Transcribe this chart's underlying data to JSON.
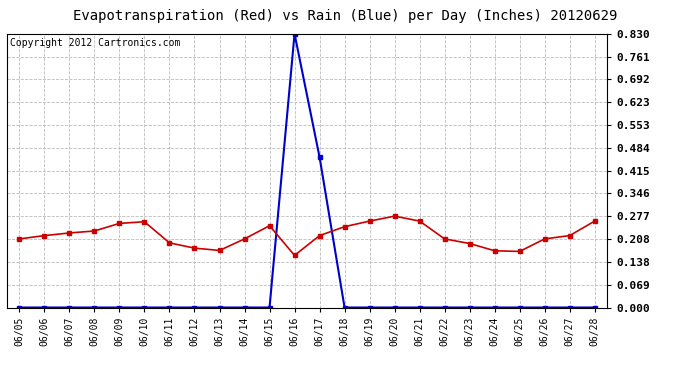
{
  "title": "Evapotranspiration (Red) vs Rain (Blue) per Day (Inches) 20120629",
  "copyright": "Copyright 2012 Cartronics.com",
  "x_labels": [
    "06/05",
    "06/06",
    "06/07",
    "06/08",
    "06/09",
    "06/10",
    "06/11",
    "06/12",
    "06/13",
    "06/14",
    "06/15",
    "06/16",
    "06/17",
    "06/18",
    "06/19",
    "06/20",
    "06/21",
    "06/22",
    "06/23",
    "06/24",
    "06/25",
    "06/26",
    "06/27",
    "06/28"
  ],
  "et_values": [
    0.208,
    0.218,
    0.226,
    0.232,
    0.255,
    0.26,
    0.196,
    0.18,
    0.173,
    0.208,
    0.248,
    0.158,
    0.218,
    0.245,
    0.262,
    0.277,
    0.262,
    0.208,
    0.194,
    0.172,
    0.17,
    0.208,
    0.218,
    0.262
  ],
  "rain_values": [
    0.0,
    0.0,
    0.0,
    0.0,
    0.0,
    0.0,
    0.0,
    0.0,
    0.0,
    0.0,
    0.0,
    0.83,
    0.456,
    0.0,
    0.0,
    0.0,
    0.0,
    0.0,
    0.0,
    0.0,
    0.0,
    0.0,
    0.0,
    0.0
  ],
  "et_color": "#cc0000",
  "rain_color": "#0000cc",
  "background_color": "#ffffff",
  "grid_color": "#bbbbbb",
  "ylim": [
    0.0,
    0.83
  ],
  "yticks": [
    0.0,
    0.069,
    0.138,
    0.208,
    0.277,
    0.346,
    0.415,
    0.484,
    0.553,
    0.623,
    0.692,
    0.761,
    0.83
  ],
  "title_fontsize": 10,
  "copyright_fontsize": 7,
  "tick_fontsize": 8,
  "xlabel_fontsize": 7
}
